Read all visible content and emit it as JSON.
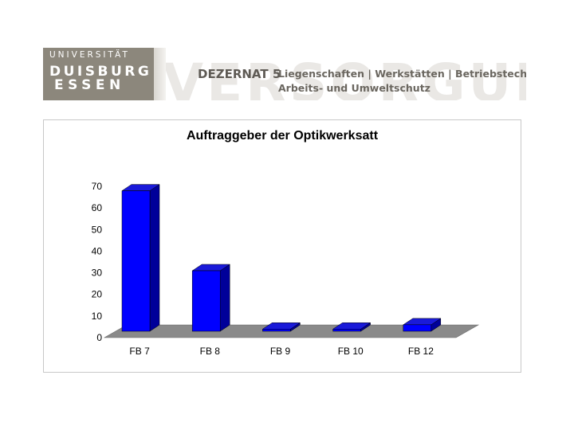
{
  "header": {
    "logo": {
      "line1": "UNIVERSITÄT",
      "line2": "DUISBURG",
      "line3": "ESSEN"
    },
    "dezernat": "DEZERNAT 5",
    "departments_line1": "Liegenschaften | Werkstätten | Betriebstechnik |",
    "departments_line2": "Arbeits- und Umweltschutz",
    "colors": {
      "logo_bg": "#8c877c",
      "text": "#5e5a54"
    }
  },
  "chart_data": {
    "type": "bar",
    "title": "Auftraggeber der Optikwerksatt",
    "categories": [
      "FB 7",
      "FB 8",
      "FB 9",
      "FB 10",
      "FB 12"
    ],
    "values": [
      65,
      28,
      1,
      1,
      3
    ],
    "xlabel": "",
    "ylabel": "",
    "ylim": [
      0,
      70
    ],
    "yticks": [
      0,
      10,
      20,
      30,
      40,
      50,
      60,
      70
    ],
    "style": "3d",
    "grid": false,
    "legend": "none",
    "colors": {
      "bar_front": "#0000ff",
      "bar_top": "#1a1ad9",
      "bar_side": "#000099",
      "floor": "#8a8a8a"
    }
  }
}
